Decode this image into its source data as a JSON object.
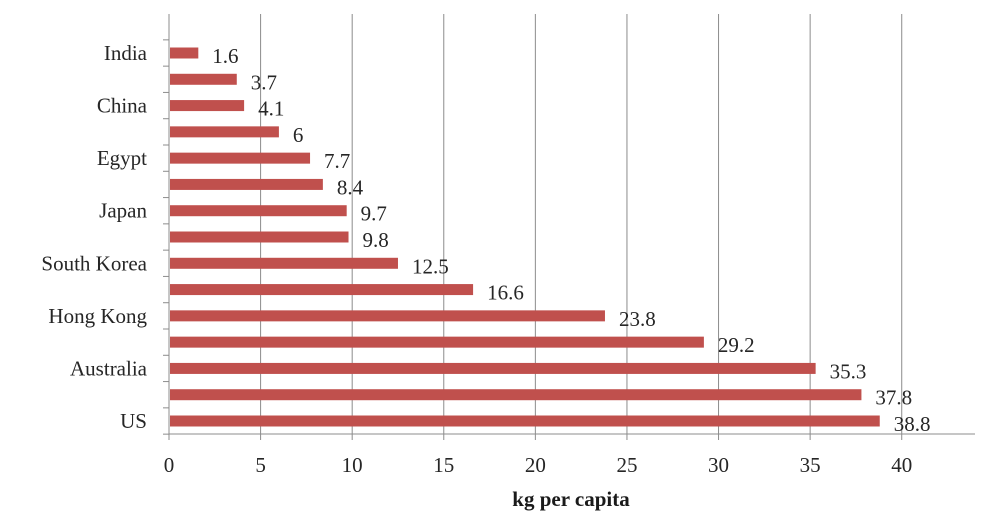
{
  "chart_data": {
    "type": "bar",
    "orientation": "horizontal",
    "title": "",
    "xlabel": "kg per capita",
    "ylabel": "",
    "xlim": [
      0,
      44
    ],
    "x_ticks": [
      0,
      5,
      10,
      15,
      20,
      25,
      30,
      35,
      40
    ],
    "grid": "vertical",
    "bar_color": "#c0504d",
    "categories": [
      "India",
      "",
      "China",
      "",
      "Egypt",
      "",
      "Japan",
      "",
      "South Korea",
      "",
      "Hong Kong",
      "",
      "Australia",
      "",
      "US"
    ],
    "values": [
      1.6,
      3.7,
      4.1,
      6,
      7.7,
      8.4,
      9.7,
      9.8,
      12.5,
      16.6,
      23.8,
      29.2,
      35.3,
      37.8,
      38.8
    ],
    "data_labels": [
      "1.6",
      "3.7",
      "4.1",
      "6",
      "7.7",
      "8.4",
      "9.7",
      "9.8",
      "12.5",
      "16.6",
      "23.8",
      "29.2",
      "35.3",
      "37.8",
      "38.8"
    ]
  }
}
